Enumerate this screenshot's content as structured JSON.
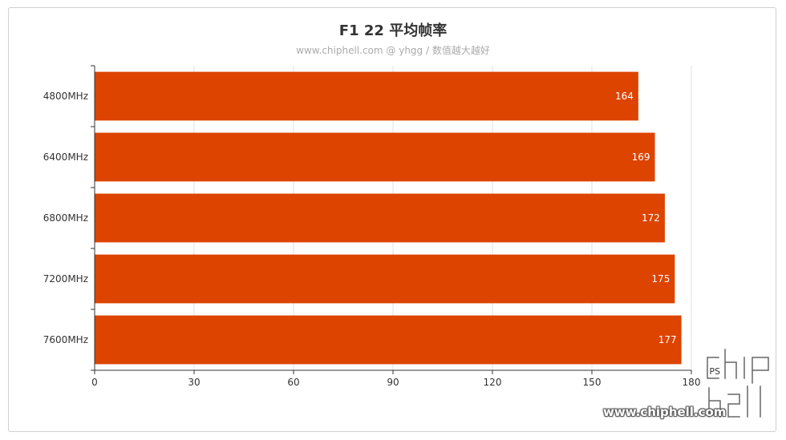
{
  "chart_data": {
    "type": "bar",
    "orientation": "horizontal",
    "title": "F1 22 平均帧率",
    "subtitle": "www.chiphell.com @ yhgg / 数值越大越好",
    "categories": [
      "4800MHz",
      "6400MHz",
      "6800MHz",
      "7200MHz",
      "7600MHz"
    ],
    "values": [
      164,
      169,
      172,
      175,
      177
    ],
    "xlabel": "FPS",
    "xlim": [
      0,
      180
    ],
    "xticks": [
      0,
      30,
      60,
      90,
      120,
      150,
      180
    ],
    "grid": true,
    "legend": "none",
    "bar_color": "#dd4400"
  },
  "watermark": {
    "text": "www.chiphell.com",
    "logo_text": "chiphell"
  }
}
